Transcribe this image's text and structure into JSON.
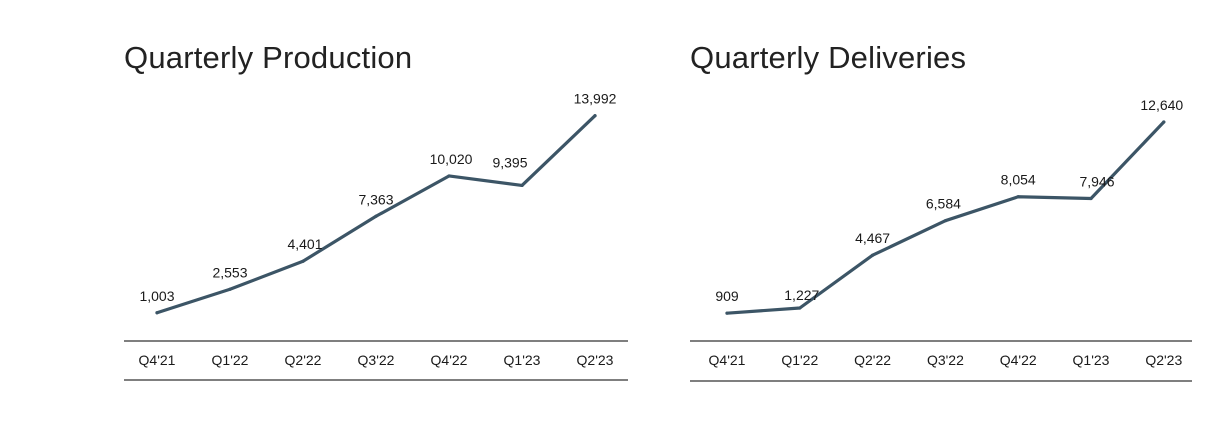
{
  "charts": {
    "production": {
      "title": "Quarterly Production",
      "color": "#3c5566"
    },
    "deliveries": {
      "title": "Quarterly Deliveries",
      "color": "#3c5566"
    }
  },
  "chart_data": [
    {
      "type": "line",
      "title": "Quarterly Production",
      "categories": [
        "Q4'21",
        "Q1'22",
        "Q2'22",
        "Q3'22",
        "Q4'22",
        "Q1'23",
        "Q2'23"
      ],
      "values": [
        1003,
        2553,
        4401,
        7363,
        10020,
        9395,
        13992
      ],
      "data_labels": [
        "1,003",
        "2,553",
        "4,401",
        "7,363",
        "10,020",
        "9,395",
        "13,992"
      ],
      "ylim": [
        0,
        14500
      ],
      "grid": false,
      "color": "#3c5566"
    },
    {
      "type": "line",
      "title": "Quarterly Deliveries",
      "categories": [
        "Q4'21",
        "Q1'22",
        "Q2'22",
        "Q3'22",
        "Q4'22",
        "Q1'23",
        "Q2'23"
      ],
      "values": [
        909,
        1227,
        4467,
        6584,
        8054,
        7946,
        12640
      ],
      "data_labels": [
        "909",
        "1,227",
        "4,467",
        "6,584",
        "8,054",
        "7,946",
        "12,640"
      ],
      "ylim": [
        0,
        13500
      ],
      "grid": false,
      "color": "#3c5566"
    }
  ]
}
